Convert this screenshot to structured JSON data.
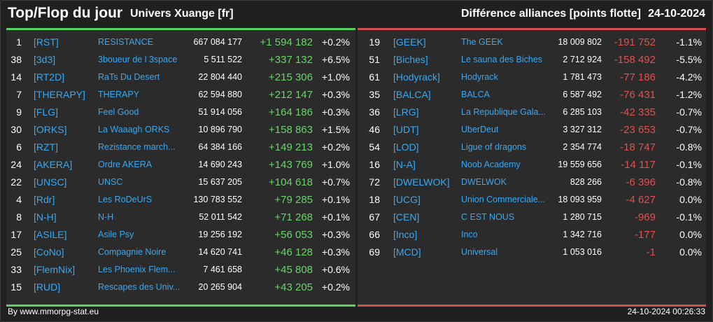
{
  "header": {
    "title": "Top/Flop du jour",
    "universe": "Univers Xuange [fr]",
    "metric": "Différence alliances [points flotte]",
    "date": "24-10-2024"
  },
  "footer": {
    "source": "By www.mmorpg-stat.eu",
    "timestamp": "24-10-2024 00:26:33"
  },
  "colors": {
    "top_accent": "#5ad35e",
    "flop_accent": "#d3514a",
    "link": "#3aa8f0",
    "background": "#202020",
    "panel": "#2b2b2b"
  },
  "top": [
    {
      "rank": "1",
      "tag": "[RST]",
      "name": "RESISTANCE",
      "points": "667 084 177",
      "diff": "+1 594 182",
      "pct": "+0.2%"
    },
    {
      "rank": "38",
      "tag": "[3d3]",
      "name": "3boueur de l 3space",
      "points": "5 511 522",
      "diff": "+337 132",
      "pct": "+6.5%"
    },
    {
      "rank": "14",
      "tag": "[RT2D]",
      "name": "RaTs Du Desert",
      "points": "22 804 440",
      "diff": "+215 306",
      "pct": "+1.0%"
    },
    {
      "rank": "7",
      "tag": "[THERAPY]",
      "name": "THERAPY",
      "points": "62 594 880",
      "diff": "+212 147",
      "pct": "+0.3%"
    },
    {
      "rank": "9",
      "tag": "[FLG]",
      "name": "Feel Good",
      "points": "51 914 056",
      "diff": "+164 186",
      "pct": "+0.3%"
    },
    {
      "rank": "30",
      "tag": "[ORKS]",
      "name": "La Waaagh ORKS",
      "points": "10 896 790",
      "diff": "+158 863",
      "pct": "+1.5%"
    },
    {
      "rank": "6",
      "tag": "[RZT]",
      "name": "Rezistance march...",
      "points": "64 384 166",
      "diff": "+149 213",
      "pct": "+0.2%"
    },
    {
      "rank": "24",
      "tag": "[AKERA]",
      "name": "Ordre AKERA",
      "points": "14 690 243",
      "diff": "+143 769",
      "pct": "+1.0%"
    },
    {
      "rank": "22",
      "tag": "[UNSC]",
      "name": "UNSC",
      "points": "15 637 205",
      "diff": "+104 618",
      "pct": "+0.7%"
    },
    {
      "rank": "4",
      "tag": "[Rdr]",
      "name": "Les RoDeUrS",
      "points": "130 783 552",
      "diff": "+79 285",
      "pct": "+0.1%"
    },
    {
      "rank": "8",
      "tag": "[N-H]",
      "name": "N-H",
      "points": "52 011 542",
      "diff": "+71 268",
      "pct": "+0.1%"
    },
    {
      "rank": "17",
      "tag": "[ASILE]",
      "name": "Asile Psy",
      "points": "19 256 192",
      "diff": "+56 053",
      "pct": "+0.3%"
    },
    {
      "rank": "25",
      "tag": "[CoNo]",
      "name": "Compagnie Noire",
      "points": "14 620 741",
      "diff": "+46 128",
      "pct": "+0.3%"
    },
    {
      "rank": "33",
      "tag": "[FlemNix]",
      "name": "Les Phoenix Flem...",
      "points": "7 461 658",
      "diff": "+45 808",
      "pct": "+0.6%"
    },
    {
      "rank": "15",
      "tag": "[RUD]",
      "name": "Rescapes des Univ...",
      "points": "20 265 904",
      "diff": "+43 205",
      "pct": "+0.2%"
    }
  ],
  "flop": [
    {
      "rank": "19",
      "tag": "[GEEK]",
      "name": "The GEEK",
      "points": "18 009 802",
      "diff": "-191 752",
      "pct": "-1.1%"
    },
    {
      "rank": "51",
      "tag": "[Biches]",
      "name": "Le sauna des Biches",
      "points": "2 712 924",
      "diff": "-158 492",
      "pct": "-5.5%"
    },
    {
      "rank": "61",
      "tag": "[Hodyrack]",
      "name": "Hodyrack",
      "points": "1 781 473",
      "diff": "-77 186",
      "pct": "-4.2%"
    },
    {
      "rank": "35",
      "tag": "[BALCA]",
      "name": "BALCA",
      "points": "6 587 492",
      "diff": "-76 431",
      "pct": "-1.2%"
    },
    {
      "rank": "36",
      "tag": "[LRG]",
      "name": "La Republique Gala...",
      "points": "6 285 103",
      "diff": "-42 335",
      "pct": "-0.7%"
    },
    {
      "rank": "46",
      "tag": "[UDT]",
      "name": "UberDeut",
      "points": "3 327 312",
      "diff": "-23 653",
      "pct": "-0.7%"
    },
    {
      "rank": "54",
      "tag": "[LOD]",
      "name": "Ligue of dragons",
      "points": "2 354 774",
      "diff": "-18 747",
      "pct": "-0.8%"
    },
    {
      "rank": "16",
      "tag": "[N-A]",
      "name": "Noob Academy",
      "points": "19 559 656",
      "diff": "-14 117",
      "pct": "-0.1%"
    },
    {
      "rank": "72",
      "tag": "[DWELWOK]",
      "name": "DWELWOK",
      "points": "828 266",
      "diff": "-6 396",
      "pct": "-0.8%"
    },
    {
      "rank": "18",
      "tag": "[UCG]",
      "name": "Union Commerciale...",
      "points": "18 093 959",
      "diff": "-4 627",
      "pct": "0.0%"
    },
    {
      "rank": "67",
      "tag": "[CEN]",
      "name": "C EST NOUS",
      "points": "1 280 715",
      "diff": "-969",
      "pct": "-0.1%"
    },
    {
      "rank": "66",
      "tag": "[Inco]",
      "name": "Inco",
      "points": "1 342 716",
      "diff": "-177",
      "pct": "0.0%"
    },
    {
      "rank": "69",
      "tag": "[MCD]",
      "name": "Universal",
      "points": "1 053 016",
      "diff": "-1",
      "pct": "0.0%"
    }
  ]
}
